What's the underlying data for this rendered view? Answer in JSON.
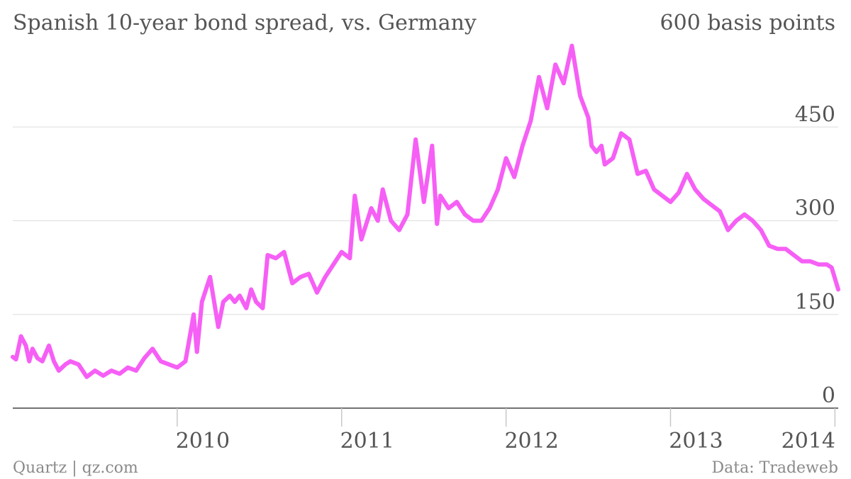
{
  "chart_data": {
    "type": "line",
    "title": "Spanish 10-year bond spread, vs. Germany",
    "ylabel": "basis points",
    "ylim": [
      0,
      600
    ],
    "y_ticks": [
      {
        "value": 600,
        "label": "600 basis points"
      },
      {
        "value": 450,
        "label": "450"
      },
      {
        "value": 300,
        "label": "300"
      },
      {
        "value": 150,
        "label": "150"
      },
      {
        "value": 0,
        "label": "0"
      }
    ],
    "xlim": [
      2009.0,
      2014.02
    ],
    "x_ticks": [
      {
        "value": 2010,
        "label": "2010"
      },
      {
        "value": 2011,
        "label": "2011"
      },
      {
        "value": 2012,
        "label": "2012"
      },
      {
        "value": 2013,
        "label": "2013"
      },
      {
        "value": 2014,
        "label": "2014"
      }
    ],
    "grid": true,
    "color": "#f65ff5",
    "series": [
      {
        "x": [
          2009.0,
          2009.02,
          2009.05,
          2009.08,
          2009.1,
          2009.12,
          2009.15,
          2009.18,
          2009.22,
          2009.25,
          2009.28,
          2009.32,
          2009.35,
          2009.4,
          2009.45,
          2009.5,
          2009.55,
          2009.6,
          2009.65,
          2009.7,
          2009.75,
          2009.8,
          2009.85,
          2009.9,
          2009.95,
          2010.0,
          2010.05,
          2010.1,
          2010.12,
          2010.15,
          2010.2,
          2010.25,
          2010.28,
          2010.32,
          2010.35,
          2010.38,
          2010.42,
          2010.45,
          2010.48,
          2010.52,
          2010.55,
          2010.6,
          2010.65,
          2010.7,
          2010.75,
          2010.8,
          2010.85,
          2010.9,
          2010.95,
          2011.0,
          2011.05,
          2011.08,
          2011.12,
          2011.18,
          2011.22,
          2011.25,
          2011.3,
          2011.35,
          2011.4,
          2011.45,
          2011.5,
          2011.55,
          2011.58,
          2011.6,
          2011.65,
          2011.7,
          2011.75,
          2011.8,
          2011.85,
          2011.9,
          2011.95,
          2012.0,
          2012.05,
          2012.1,
          2012.15,
          2012.2,
          2012.25,
          2012.3,
          2012.35,
          2012.4,
          2012.45,
          2012.5,
          2012.52,
          2012.55,
          2012.58,
          2012.6,
          2012.65,
          2012.7,
          2012.75,
          2012.8,
          2012.85,
          2012.9,
          2012.95,
          2013.0,
          2013.05,
          2013.1,
          2013.15,
          2013.2,
          2013.25,
          2013.3,
          2013.35,
          2013.4,
          2013.45,
          2013.5,
          2013.55,
          2013.6,
          2013.65,
          2013.7,
          2013.75,
          2013.8,
          2013.85,
          2013.9,
          2013.95,
          2013.98,
          2014.02
        ],
        "values": [
          82,
          78,
          115,
          100,
          75,
          95,
          80,
          75,
          100,
          75,
          60,
          70,
          75,
          70,
          50,
          60,
          52,
          60,
          55,
          65,
          60,
          80,
          95,
          75,
          70,
          65,
          75,
          150,
          90,
          170,
          210,
          130,
          170,
          180,
          170,
          180,
          160,
          190,
          170,
          160,
          245,
          240,
          250,
          200,
          210,
          215,
          185,
          210,
          230,
          250,
          240,
          340,
          270,
          320,
          300,
          350,
          300,
          285,
          310,
          430,
          330,
          420,
          295,
          340,
          320,
          330,
          310,
          300,
          300,
          320,
          350,
          400,
          370,
          420,
          460,
          530,
          480,
          550,
          520,
          580,
          500,
          465,
          420,
          410,
          420,
          390,
          400,
          440,
          430,
          375,
          380,
          350,
          340,
          330,
          345,
          375,
          350,
          335,
          325,
          315,
          285,
          300,
          310,
          300,
          285,
          260,
          255,
          255,
          245,
          235,
          235,
          230,
          230,
          225,
          190
        ]
      }
    ],
    "source": "Data: Tradeweb",
    "credit": "Quartz | qz.com"
  }
}
